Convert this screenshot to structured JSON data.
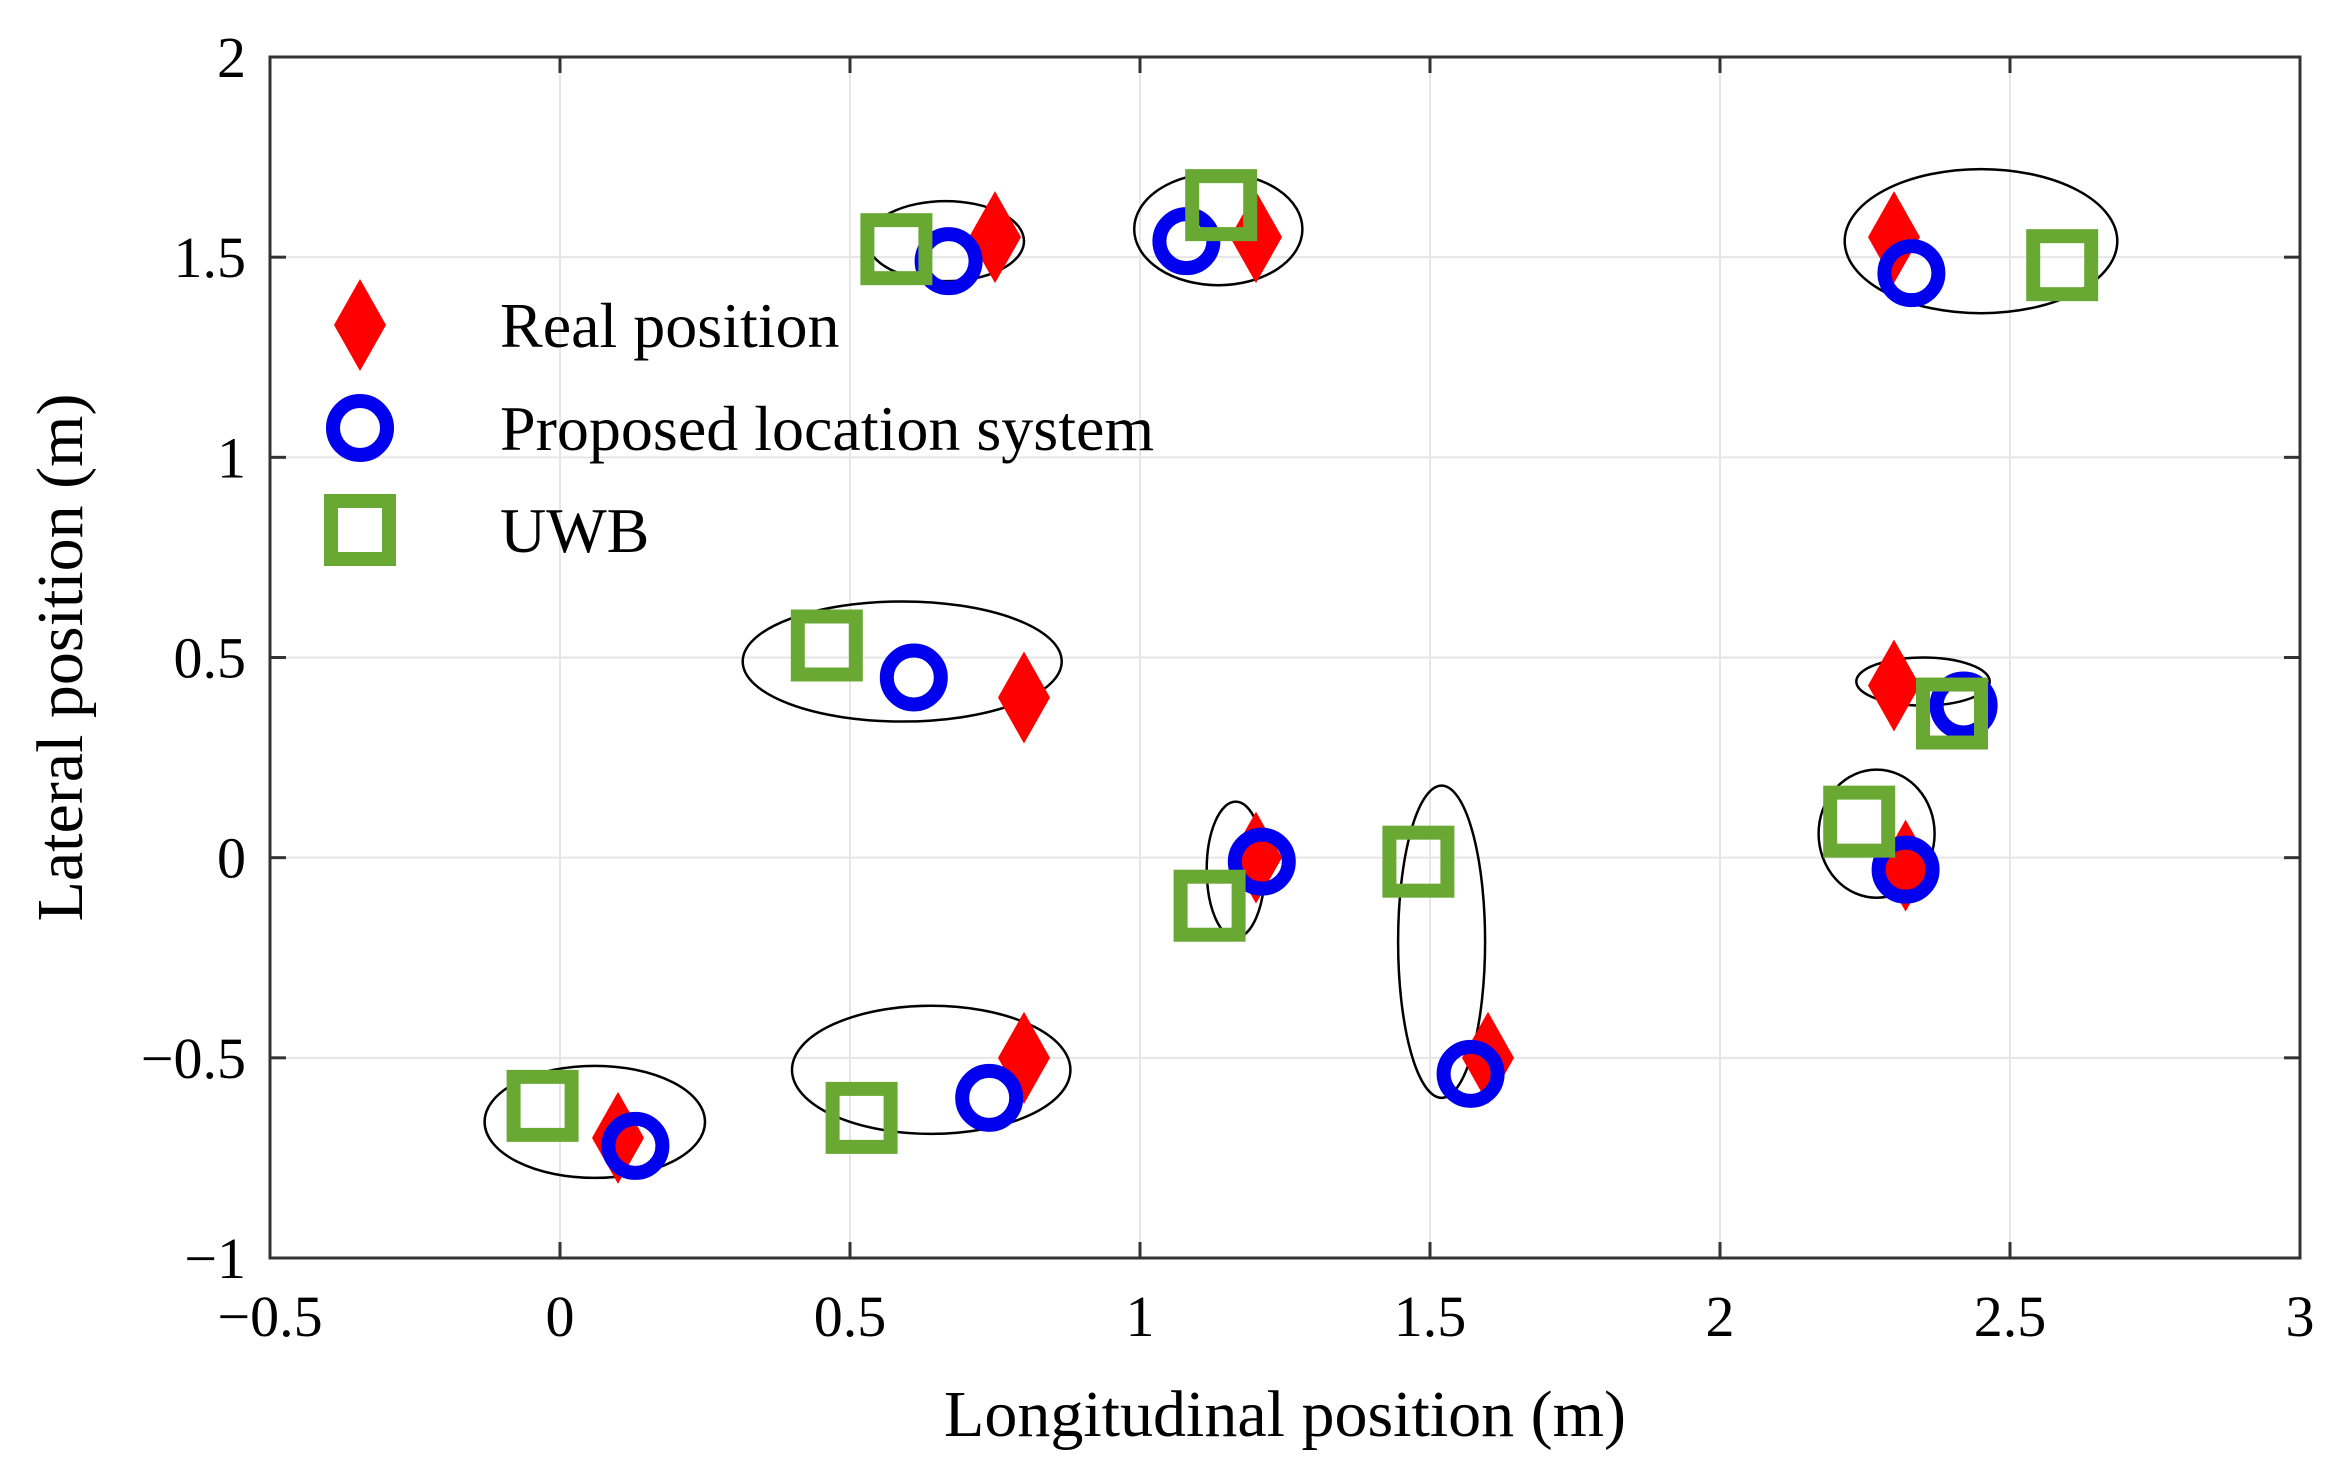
{
  "chart_data": {
    "type": "scatter",
    "xlabel": "Longitudinal position (m)",
    "ylabel": "Lateral position (m)",
    "xlim": [
      -0.5,
      3
    ],
    "ylim": [
      -1,
      2
    ],
    "xticks": [
      -0.5,
      0,
      0.5,
      1,
      1.5,
      2,
      2.5,
      3
    ],
    "yticks": [
      -1,
      -0.5,
      0,
      0.5,
      1,
      1.5,
      2
    ],
    "xtick_labels": [
      "−0.5",
      "0",
      "0.5",
      "1",
      "1.5",
      "2",
      "2.5",
      "3"
    ],
    "ytick_labels": [
      "−1",
      "−0.5",
      "0",
      "0.5",
      "1",
      "1.5",
      "2"
    ],
    "grid": true,
    "legend_position": "upper-left",
    "colors": {
      "real": "#ff0000",
      "proposed": "#0000ee",
      "uwb": "#6aa834",
      "ellipse": "#000000",
      "grid": "#e6e6e6"
    },
    "series": [
      {
        "name": "Real position",
        "marker": "diamond",
        "points": [
          [
            0.1,
            -0.7
          ],
          [
            0.8,
            -0.5
          ],
          [
            0.8,
            0.4
          ],
          [
            1.2,
            0
          ],
          [
            1.6,
            -0.5
          ],
          [
            0.75,
            1.55
          ],
          [
            1.2,
            1.55
          ],
          [
            2.3,
            1.55
          ],
          [
            2.3,
            0.43
          ],
          [
            2.32,
            -0.02
          ]
        ]
      },
      {
        "name": "Proposed location system",
        "marker": "circle",
        "points": [
          [
            0.13,
            -0.72
          ],
          [
            0.74,
            -0.6
          ],
          [
            0.61,
            0.45
          ],
          [
            1.21,
            -0.01
          ],
          [
            1.57,
            -0.54
          ],
          [
            0.67,
            1.49
          ],
          [
            1.08,
            1.54
          ],
          [
            2.33,
            1.46
          ],
          [
            2.42,
            0.38
          ],
          [
            2.32,
            -0.03
          ]
        ]
      },
      {
        "name": "UWB",
        "marker": "square",
        "points": [
          [
            -0.03,
            -0.62
          ],
          [
            0.52,
            -0.65
          ],
          [
            0.46,
            0.53
          ],
          [
            1.12,
            -0.12
          ],
          [
            1.48,
            -0.01
          ],
          [
            0.58,
            1.52
          ],
          [
            1.14,
            1.63
          ],
          [
            2.59,
            1.48
          ],
          [
            2.4,
            0.36
          ],
          [
            2.24,
            0.09
          ]
        ]
      }
    ],
    "ellipses": [
      {
        "cx": 0.06,
        "cy": -0.66,
        "rx": 0.19,
        "ry": 0.14
      },
      {
        "cx": 0.64,
        "cy": -0.53,
        "rx": 0.24,
        "ry": 0.16
      },
      {
        "cx": 0.59,
        "cy": 0.49,
        "rx": 0.275,
        "ry": 0.15
      },
      {
        "cx": 1.165,
        "cy": -0.03,
        "rx": 0.05,
        "ry": 0.17
      },
      {
        "cx": 1.52,
        "cy": -0.21,
        "rx": 0.075,
        "ry": 0.39
      },
      {
        "cx": 0.665,
        "cy": 1.54,
        "rx": 0.135,
        "ry": 0.1
      },
      {
        "cx": 1.135,
        "cy": 1.57,
        "rx": 0.145,
        "ry": 0.14
      },
      {
        "cx": 2.45,
        "cy": 1.54,
        "rx": 0.235,
        "ry": 0.18
      },
      {
        "cx": 2.35,
        "cy": 0.44,
        "rx": 0.115,
        "ry": 0.06
      },
      {
        "cx": 2.27,
        "cy": 0.06,
        "rx": 0.1,
        "ry": 0.16
      }
    ]
  }
}
